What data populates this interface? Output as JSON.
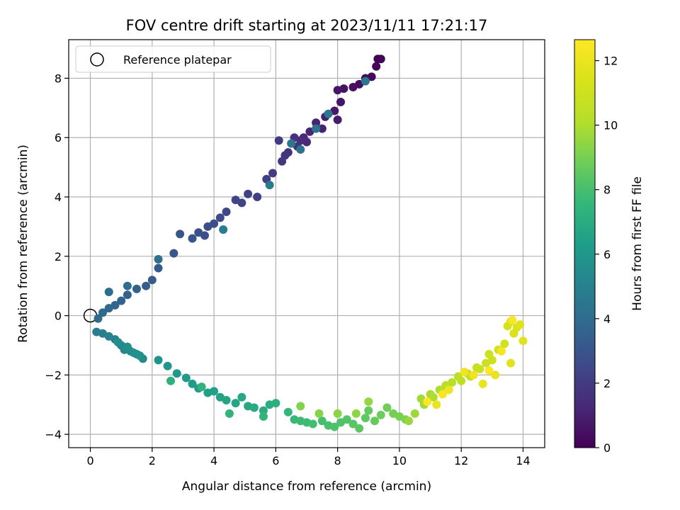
{
  "chart_data": {
    "type": "scatter",
    "title": "FOV centre drift starting at 2023/11/11 17:21:17",
    "xlabel": "Angular distance from reference (arcmin)",
    "ylabel": "Rotation from reference (arcmin)",
    "xlim": [
      -0.7,
      14.7
    ],
    "ylim": [
      -4.45,
      9.3
    ],
    "xticks": [
      0,
      2,
      4,
      6,
      8,
      10,
      12,
      14
    ],
    "yticks": [
      -4,
      -2,
      0,
      2,
      4,
      6,
      8
    ],
    "grid": true,
    "legend": {
      "placement": "top-left",
      "entries": [
        "Reference platepar"
      ]
    },
    "colorbar": {
      "label": "Hours from first FF file",
      "range": [
        0,
        12.65
      ],
      "ticks": [
        0,
        2,
        4,
        6,
        8,
        10,
        12
      ],
      "colormap": "viridis"
    },
    "reference_point": {
      "x": 0,
      "y": 0
    },
    "series": [
      {
        "points": [
          [
            9.3,
            8.65
          ],
          [
            9.4,
            8.65
          ],
          [
            9.25,
            8.4
          ],
          [
            9.1,
            8.05
          ],
          [
            8.9,
            8.0
          ],
          [
            8.7,
            7.8
          ],
          [
            8.5,
            7.7
          ],
          [
            8.2,
            7.65
          ],
          [
            8.0,
            7.6
          ],
          [
            8.1,
            7.2
          ],
          [
            7.9,
            6.9
          ],
          [
            8.0,
            6.6
          ],
          [
            7.6,
            6.7
          ],
          [
            7.5,
            6.3
          ],
          [
            7.3,
            6.5
          ],
          [
            7.1,
            6.2
          ],
          [
            6.9,
            6.0
          ],
          [
            7.0,
            5.85
          ],
          [
            6.8,
            5.9
          ],
          [
            6.7,
            5.7
          ],
          [
            6.6,
            6.0
          ],
          [
            6.4,
            5.5
          ],
          [
            6.3,
            5.4
          ],
          [
            6.2,
            5.2
          ],
          [
            6.1,
            5.9
          ],
          [
            5.9,
            4.8
          ],
          [
            5.7,
            4.6
          ],
          [
            5.4,
            4.0
          ],
          [
            5.1,
            4.1
          ],
          [
            4.9,
            3.8
          ],
          [
            4.7,
            3.9
          ],
          [
            4.4,
            3.5
          ],
          [
            4.2,
            3.3
          ],
          [
            4.0,
            3.1
          ],
          [
            3.8,
            3.0
          ],
          [
            3.7,
            2.7
          ],
          [
            3.5,
            2.8
          ],
          [
            3.3,
            2.6
          ],
          [
            2.9,
            2.75
          ],
          [
            2.7,
            2.1
          ],
          [
            2.2,
            1.6
          ],
          [
            2.0,
            1.2
          ],
          [
            1.8,
            1.0
          ],
          [
            1.5,
            0.9
          ],
          [
            1.2,
            0.7
          ],
          [
            1.0,
            0.5
          ],
          [
            0.8,
            0.35
          ],
          [
            0.6,
            0.25
          ],
          [
            0.4,
            0.1
          ],
          [
            0.25,
            -0.1
          ],
          [
            0.6,
            0.8
          ],
          [
            1.2,
            1.0
          ],
          [
            2.2,
            1.9
          ],
          [
            6.8,
            5.6
          ],
          [
            7.3,
            6.3
          ],
          [
            8.9,
            7.9
          ],
          [
            6.5,
            5.8
          ],
          [
            7.7,
            6.8
          ],
          [
            5.8,
            4.4
          ],
          [
            4.3,
            2.9
          ],
          [
            0.2,
            -0.55
          ],
          [
            0.4,
            -0.6
          ],
          [
            0.6,
            -0.7
          ],
          [
            0.8,
            -0.8
          ],
          [
            1.0,
            -1.0
          ],
          [
            1.1,
            -1.15
          ],
          [
            1.3,
            -1.2
          ],
          [
            1.5,
            -1.3
          ],
          [
            1.7,
            -1.45
          ],
          [
            0.9,
            -0.9
          ],
          [
            1.2,
            -1.05
          ],
          [
            1.4,
            -1.25
          ],
          [
            1.6,
            -1.35
          ],
          [
            2.2,
            -1.5
          ],
          [
            2.5,
            -1.7
          ],
          [
            2.8,
            -1.95
          ],
          [
            3.1,
            -2.1
          ],
          [
            3.3,
            -2.3
          ],
          [
            3.5,
            -2.45
          ],
          [
            3.8,
            -2.6
          ],
          [
            4.0,
            -2.55
          ],
          [
            4.2,
            -2.75
          ],
          [
            4.4,
            -2.85
          ],
          [
            4.7,
            -2.95
          ],
          [
            4.9,
            -2.75
          ],
          [
            5.1,
            -3.05
          ],
          [
            5.3,
            -3.1
          ],
          [
            5.6,
            -3.2
          ],
          [
            5.8,
            -3.0
          ],
          [
            6.0,
            -2.95
          ],
          [
            2.6,
            -2.2
          ],
          [
            3.6,
            -2.4
          ],
          [
            4.5,
            -3.3
          ],
          [
            5.6,
            -3.4
          ],
          [
            6.4,
            -3.25
          ],
          [
            6.6,
            -3.5
          ],
          [
            6.8,
            -3.55
          ],
          [
            7.0,
            -3.6
          ],
          [
            7.2,
            -3.65
          ],
          [
            7.5,
            -3.55
          ],
          [
            7.7,
            -3.7
          ],
          [
            7.9,
            -3.75
          ],
          [
            8.1,
            -3.6
          ],
          [
            8.3,
            -3.5
          ],
          [
            8.5,
            -3.65
          ],
          [
            8.7,
            -3.8
          ],
          [
            8.9,
            -3.45
          ],
          [
            9.0,
            -3.2
          ],
          [
            9.2,
            -3.55
          ],
          [
            9.4,
            -3.35
          ],
          [
            9.6,
            -3.1
          ],
          [
            9.8,
            -3.3
          ],
          [
            10.0,
            -3.4
          ],
          [
            10.2,
            -3.5
          ],
          [
            6.8,
            -3.05
          ],
          [
            7.4,
            -3.3
          ],
          [
            8.0,
            -3.3
          ],
          [
            8.6,
            -3.3
          ],
          [
            9.0,
            -2.9
          ],
          [
            10.3,
            -3.55
          ],
          [
            10.5,
            -3.3
          ],
          [
            10.7,
            -2.8
          ],
          [
            10.8,
            -3.0
          ],
          [
            11.0,
            -2.65
          ],
          [
            11.1,
            -2.75
          ],
          [
            11.3,
            -2.5
          ],
          [
            11.4,
            -2.55
          ],
          [
            11.5,
            -2.35
          ],
          [
            11.7,
            -2.25
          ],
          [
            11.9,
            -2.05
          ],
          [
            12.0,
            -2.2
          ],
          [
            12.2,
            -1.95
          ],
          [
            12.3,
            -2.05
          ],
          [
            12.5,
            -1.75
          ],
          [
            12.6,
            -1.8
          ],
          [
            12.8,
            -1.6
          ],
          [
            12.9,
            -1.3
          ],
          [
            13.0,
            -1.5
          ],
          [
            13.2,
            -1.15
          ],
          [
            13.4,
            -0.95
          ],
          [
            13.5,
            -0.35
          ],
          [
            13.6,
            -0.2
          ],
          [
            13.7,
            -0.6
          ],
          [
            13.8,
            -0.4
          ],
          [
            13.9,
            -0.3
          ],
          [
            14.0,
            -0.85
          ],
          [
            13.6,
            -1.6
          ],
          [
            13.1,
            -2.0
          ],
          [
            12.7,
            -2.3
          ],
          [
            11.2,
            -3.0
          ],
          [
            11.6,
            -2.5
          ],
          [
            12.1,
            -1.9
          ],
          [
            12.4,
            -2.0
          ],
          [
            13.3,
            -1.2
          ],
          [
            13.65,
            -0.15
          ],
          [
            11.4,
            -2.65
          ],
          [
            10.9,
            -2.9
          ],
          [
            12.9,
            -1.85
          ]
        ]
      }
    ]
  }
}
